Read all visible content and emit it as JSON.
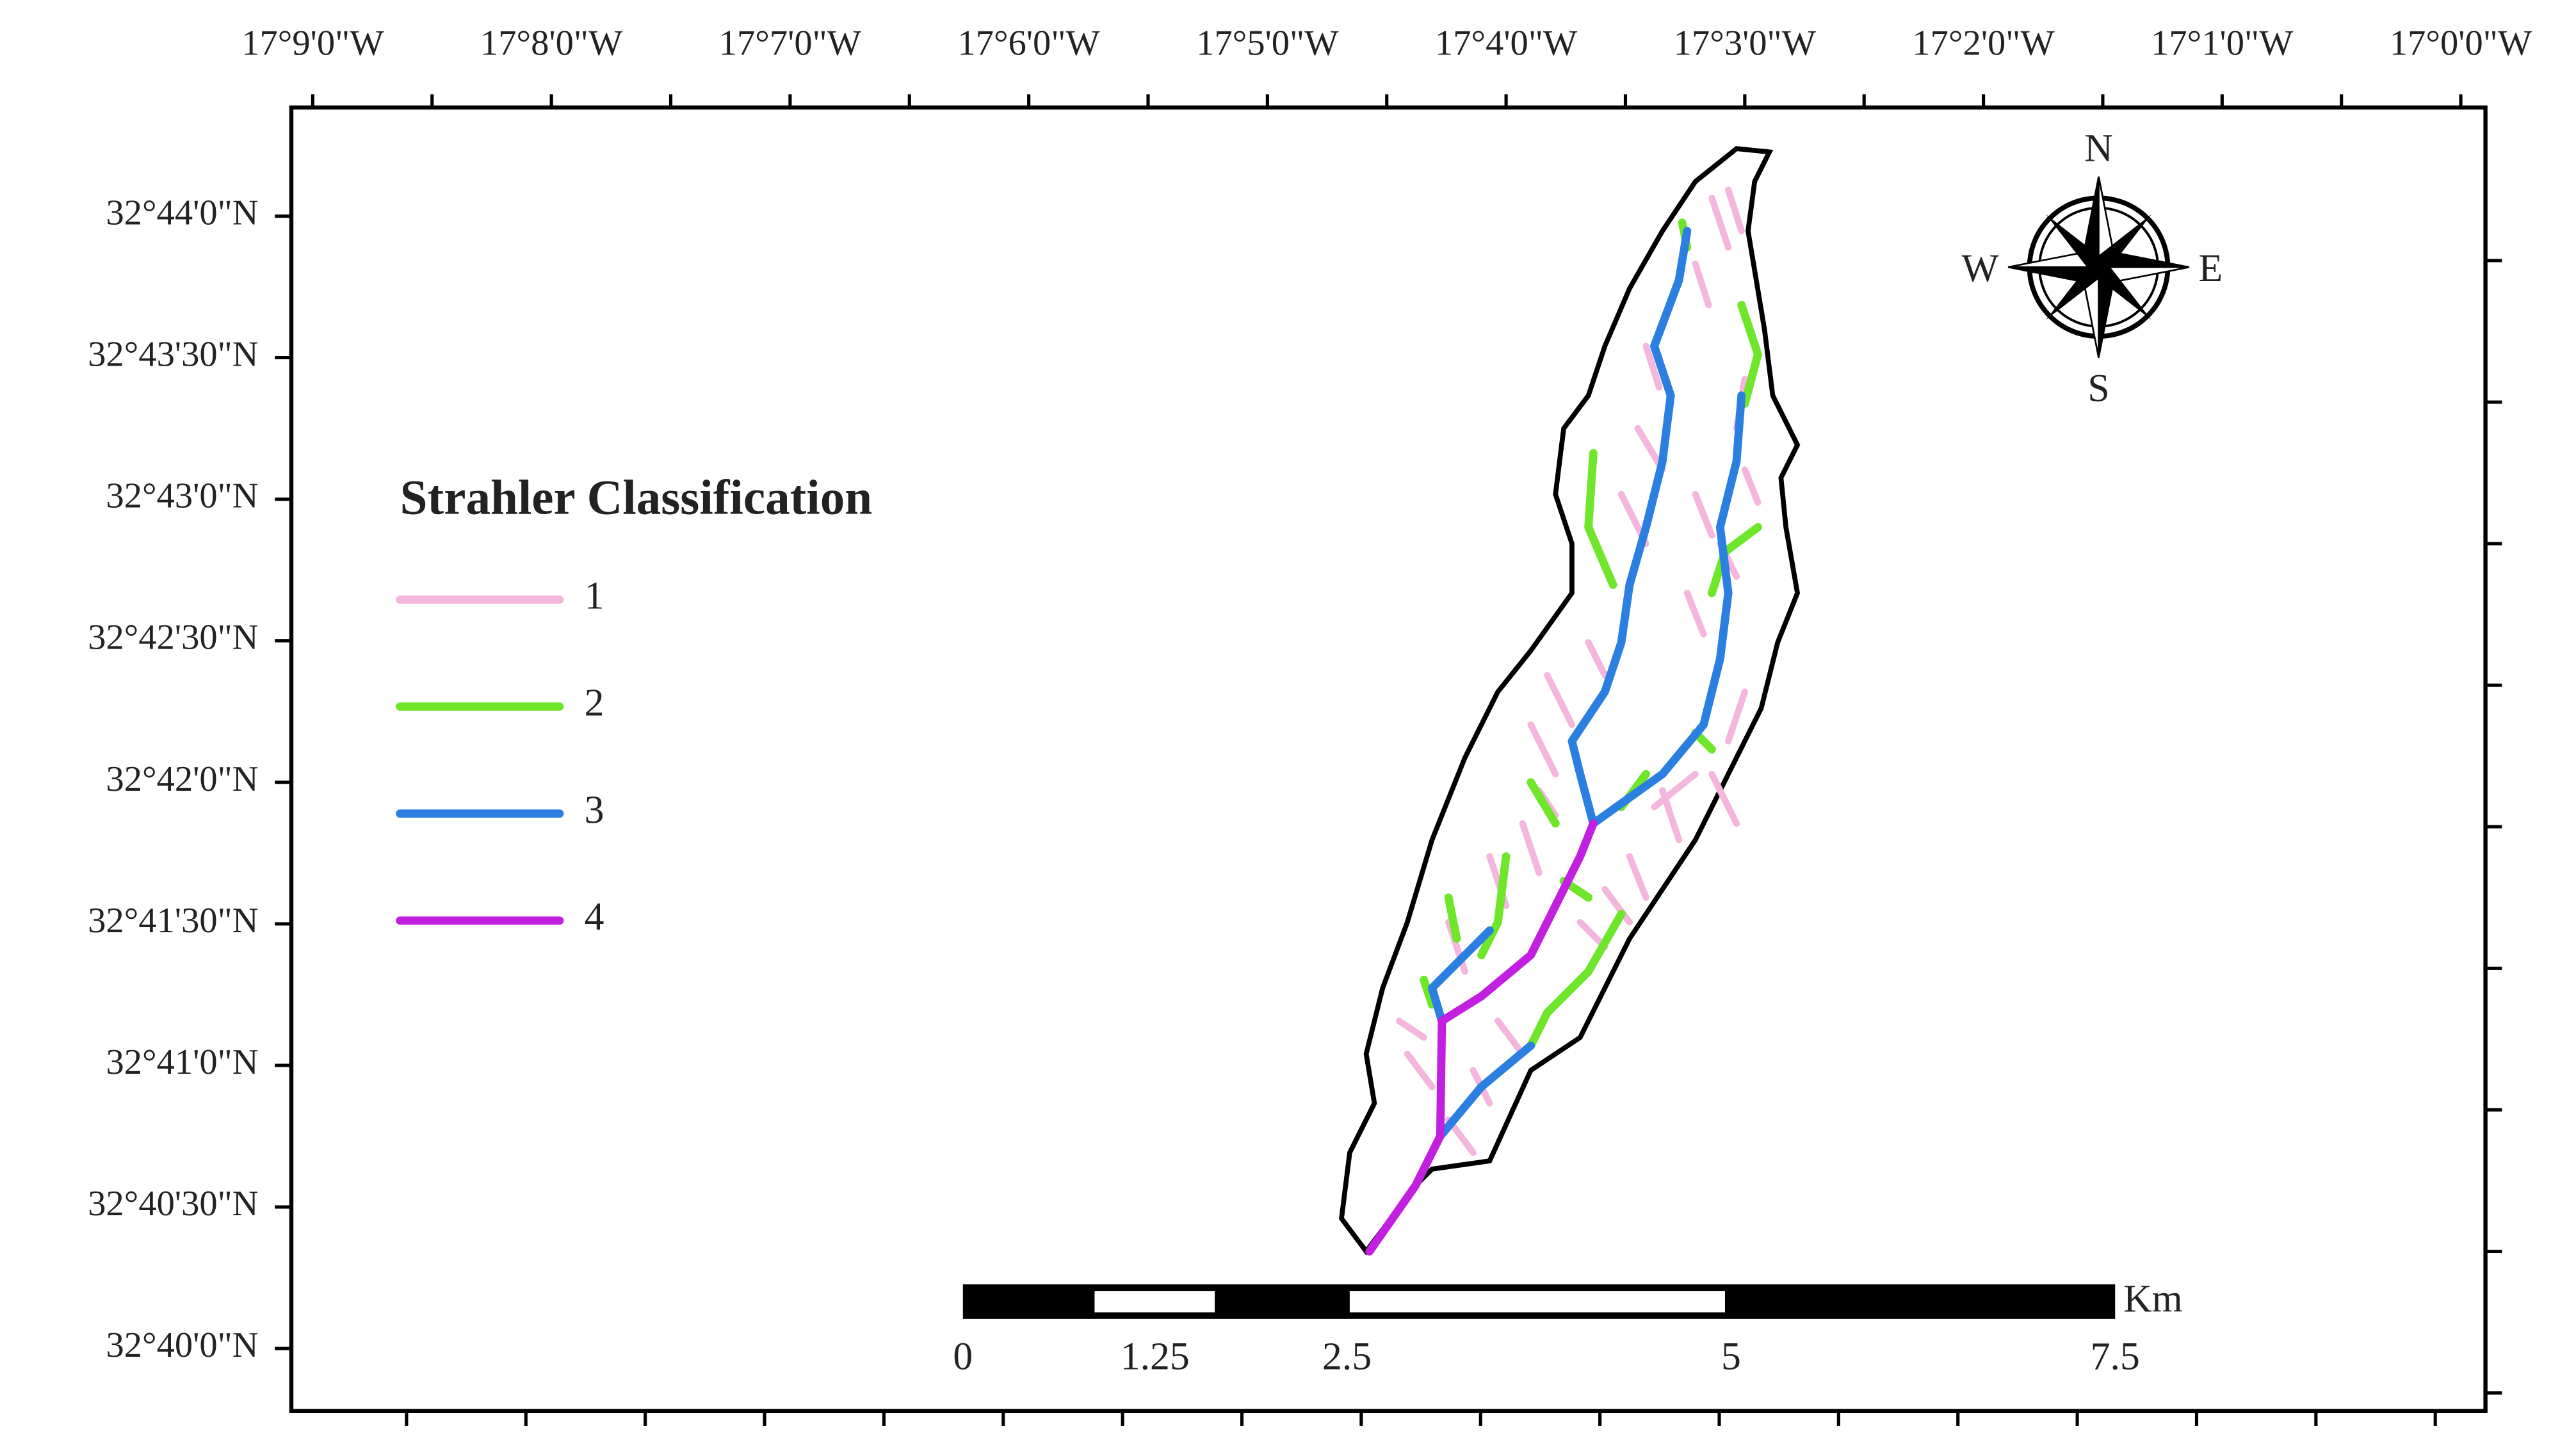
{
  "map": {
    "longitude_labels": [
      "17°9'0\"W",
      "17°8'0\"W",
      "17°7'0\"W",
      "17°6'0\"W",
      "17°5'0\"W",
      "17°4'0\"W",
      "17°3'0\"W",
      "17°2'0\"W",
      "17°1'0\"W",
      "17°0'0\"W"
    ],
    "latitude_labels": [
      "32°44'0\"N",
      "32°43'30\"N",
      "32°43'0\"N",
      "32°42'30\"N",
      "32°42'0\"N",
      "32°41'30\"N",
      "32°41'0\"N",
      "32°40'30\"N",
      "32°40'0\"N"
    ],
    "legend": {
      "title": "Strahler Classification",
      "items": [
        {
          "label": "1",
          "color": "#f4b6dc"
        },
        {
          "label": "2",
          "color": "#6ee62a"
        },
        {
          "label": "3",
          "color": "#2a7fe0"
        },
        {
          "label": "4",
          "color": "#c21fe0"
        }
      ]
    },
    "compass": {
      "north": "N",
      "south": "S",
      "east": "E",
      "west": "W"
    },
    "scale_bar": {
      "unit": "Km",
      "ticks": [
        0,
        1.25,
        2.5,
        5,
        7.5
      ]
    }
  }
}
